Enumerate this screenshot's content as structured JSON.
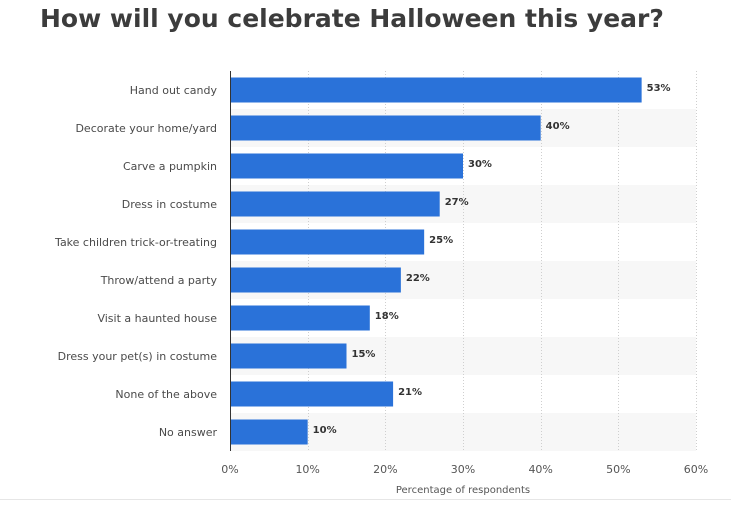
{
  "chart_data": {
    "type": "bar",
    "orientation": "horizontal",
    "title": "How will you celebrate Halloween this year?",
    "xlabel": "Percentage of respondents",
    "ylabel": "",
    "categories": [
      "Hand out candy",
      "Decorate your home/yard",
      "Carve a pumpkin",
      "Dress in costume",
      "Take children trick-or-treating",
      "Throw/attend a party",
      "Visit a haunted house",
      "Dress your pet(s) in costume",
      "None of the above",
      "No answer"
    ],
    "values": [
      53,
      40,
      30,
      27,
      25,
      22,
      18,
      15,
      21,
      10
    ],
    "value_labels": [
      "53%",
      "40%",
      "30%",
      "27%",
      "25%",
      "22%",
      "18%",
      "15%",
      "21%",
      "10%"
    ],
    "xlim": [
      0,
      60
    ],
    "xticks": [
      0,
      10,
      20,
      30,
      40,
      50,
      60
    ],
    "xtick_labels": [
      "0%",
      "10%",
      "20%",
      "30%",
      "40%",
      "50%",
      "60%"
    ],
    "grid": "vertical dotted",
    "legend": "none",
    "colors": {
      "bar": "#2a72d9",
      "band": "#f7f7f7",
      "grid": "#cfcfcf"
    }
  }
}
